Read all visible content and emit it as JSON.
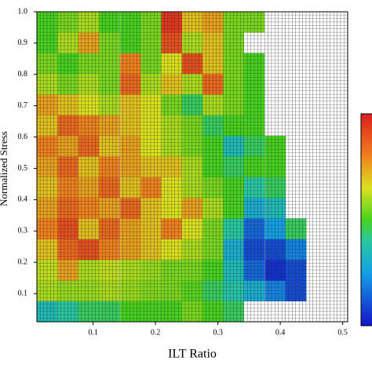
{
  "chart_data": {
    "type": "heatmap",
    "x_label": "ILT Ratio",
    "y_label": "Normalized Stress",
    "xlim": [
      0.01,
      0.508
    ],
    "ylim": [
      0.01,
      1.0
    ],
    "xticks": [
      0.1,
      0.2,
      0.3,
      0.4,
      0.5
    ],
    "yticks": [
      0.1,
      0.2,
      0.3,
      0.4,
      0.5,
      0.6,
      0.7,
      0.8,
      0.9,
      {
        "value": 1.0,
        "label": "1.0"
      }
    ],
    "x": [
      0.027,
      0.06,
      0.093,
      0.126,
      0.16,
      0.193,
      0.226,
      0.259,
      0.292,
      0.325,
      0.358,
      0.392,
      0.425,
      0.458,
      0.491
    ],
    "y": [
      0.043,
      0.109,
      0.175,
      0.241,
      0.307,
      0.373,
      0.439,
      0.505,
      0.571,
      0.637,
      0.703,
      0.769,
      0.835,
      0.901,
      0.967
    ],
    "z": [
      [
        0.35,
        0.4,
        0.45,
        0.45,
        0.5,
        0.5,
        0.5,
        0.55,
        0.5,
        0.45,
        null,
        null,
        null,
        null,
        null
      ],
      [
        0.6,
        0.58,
        0.58,
        0.6,
        0.58,
        0.56,
        0.55,
        0.52,
        0.45,
        0.38,
        0.3,
        0.2,
        0.1,
        null,
        null
      ],
      [
        0.62,
        0.75,
        0.6,
        0.62,
        0.6,
        0.58,
        0.55,
        0.55,
        0.5,
        0.35,
        0.15,
        0.05,
        0.1,
        null,
        null
      ],
      [
        0.7,
        0.85,
        0.9,
        0.8,
        0.75,
        0.7,
        0.65,
        0.6,
        0.55,
        0.3,
        0.1,
        0.1,
        0.2,
        null,
        null
      ],
      [
        0.8,
        0.9,
        0.7,
        0.85,
        0.75,
        0.7,
        0.8,
        0.65,
        0.55,
        0.4,
        0.15,
        0.25,
        0.45,
        null,
        null
      ],
      [
        0.75,
        0.85,
        0.8,
        0.75,
        0.85,
        0.7,
        0.65,
        0.75,
        0.6,
        0.5,
        0.3,
        0.35,
        null,
        null,
        null
      ],
      [
        0.7,
        0.8,
        0.75,
        0.85,
        0.7,
        0.8,
        0.65,
        0.6,
        0.55,
        0.5,
        0.4,
        0.45,
        null,
        null,
        null
      ],
      [
        0.75,
        0.85,
        0.7,
        0.8,
        0.75,
        0.7,
        0.7,
        0.6,
        0.5,
        0.45,
        0.5,
        0.5,
        null,
        null,
        null
      ],
      [
        0.8,
        0.75,
        0.85,
        0.7,
        0.75,
        0.65,
        0.6,
        0.55,
        0.5,
        0.35,
        0.45,
        0.5,
        null,
        null,
        null
      ],
      [
        0.7,
        0.85,
        0.8,
        0.75,
        0.7,
        0.65,
        0.6,
        0.55,
        0.45,
        0.5,
        0.5,
        null,
        null,
        null,
        null
      ],
      [
        0.75,
        0.7,
        0.65,
        0.6,
        0.7,
        0.65,
        0.55,
        0.45,
        0.6,
        0.55,
        0.5,
        null,
        null,
        null,
        null
      ],
      [
        0.6,
        0.55,
        0.6,
        0.55,
        0.85,
        0.6,
        0.7,
        0.6,
        0.85,
        0.55,
        0.5,
        null,
        null,
        null,
        null
      ],
      [
        0.55,
        0.5,
        0.55,
        0.55,
        0.8,
        0.55,
        0.65,
        0.9,
        0.7,
        0.55,
        0.5,
        null,
        null,
        null,
        null
      ],
      [
        0.5,
        0.6,
        0.75,
        0.55,
        0.5,
        0.55,
        0.9,
        0.6,
        0.7,
        0.55,
        null,
        null,
        null,
        null,
        null
      ],
      [
        0.5,
        0.55,
        0.6,
        0.5,
        0.5,
        0.55,
        0.95,
        0.7,
        0.75,
        0.55,
        0.55,
        null,
        null,
        null,
        null
      ]
    ],
    "zlim": [
      0,
      1
    ],
    "colorscale": [
      [
        0,
        "#1414c8"
      ],
      [
        0.25,
        "#14a0e6"
      ],
      [
        0.4,
        "#28c8a0"
      ],
      [
        0.5,
        "#46d21e"
      ],
      [
        0.65,
        "#dce11e"
      ],
      [
        0.8,
        "#f0821e"
      ],
      [
        1,
        "#dc1e1e"
      ]
    ],
    "cell_grid": true
  }
}
